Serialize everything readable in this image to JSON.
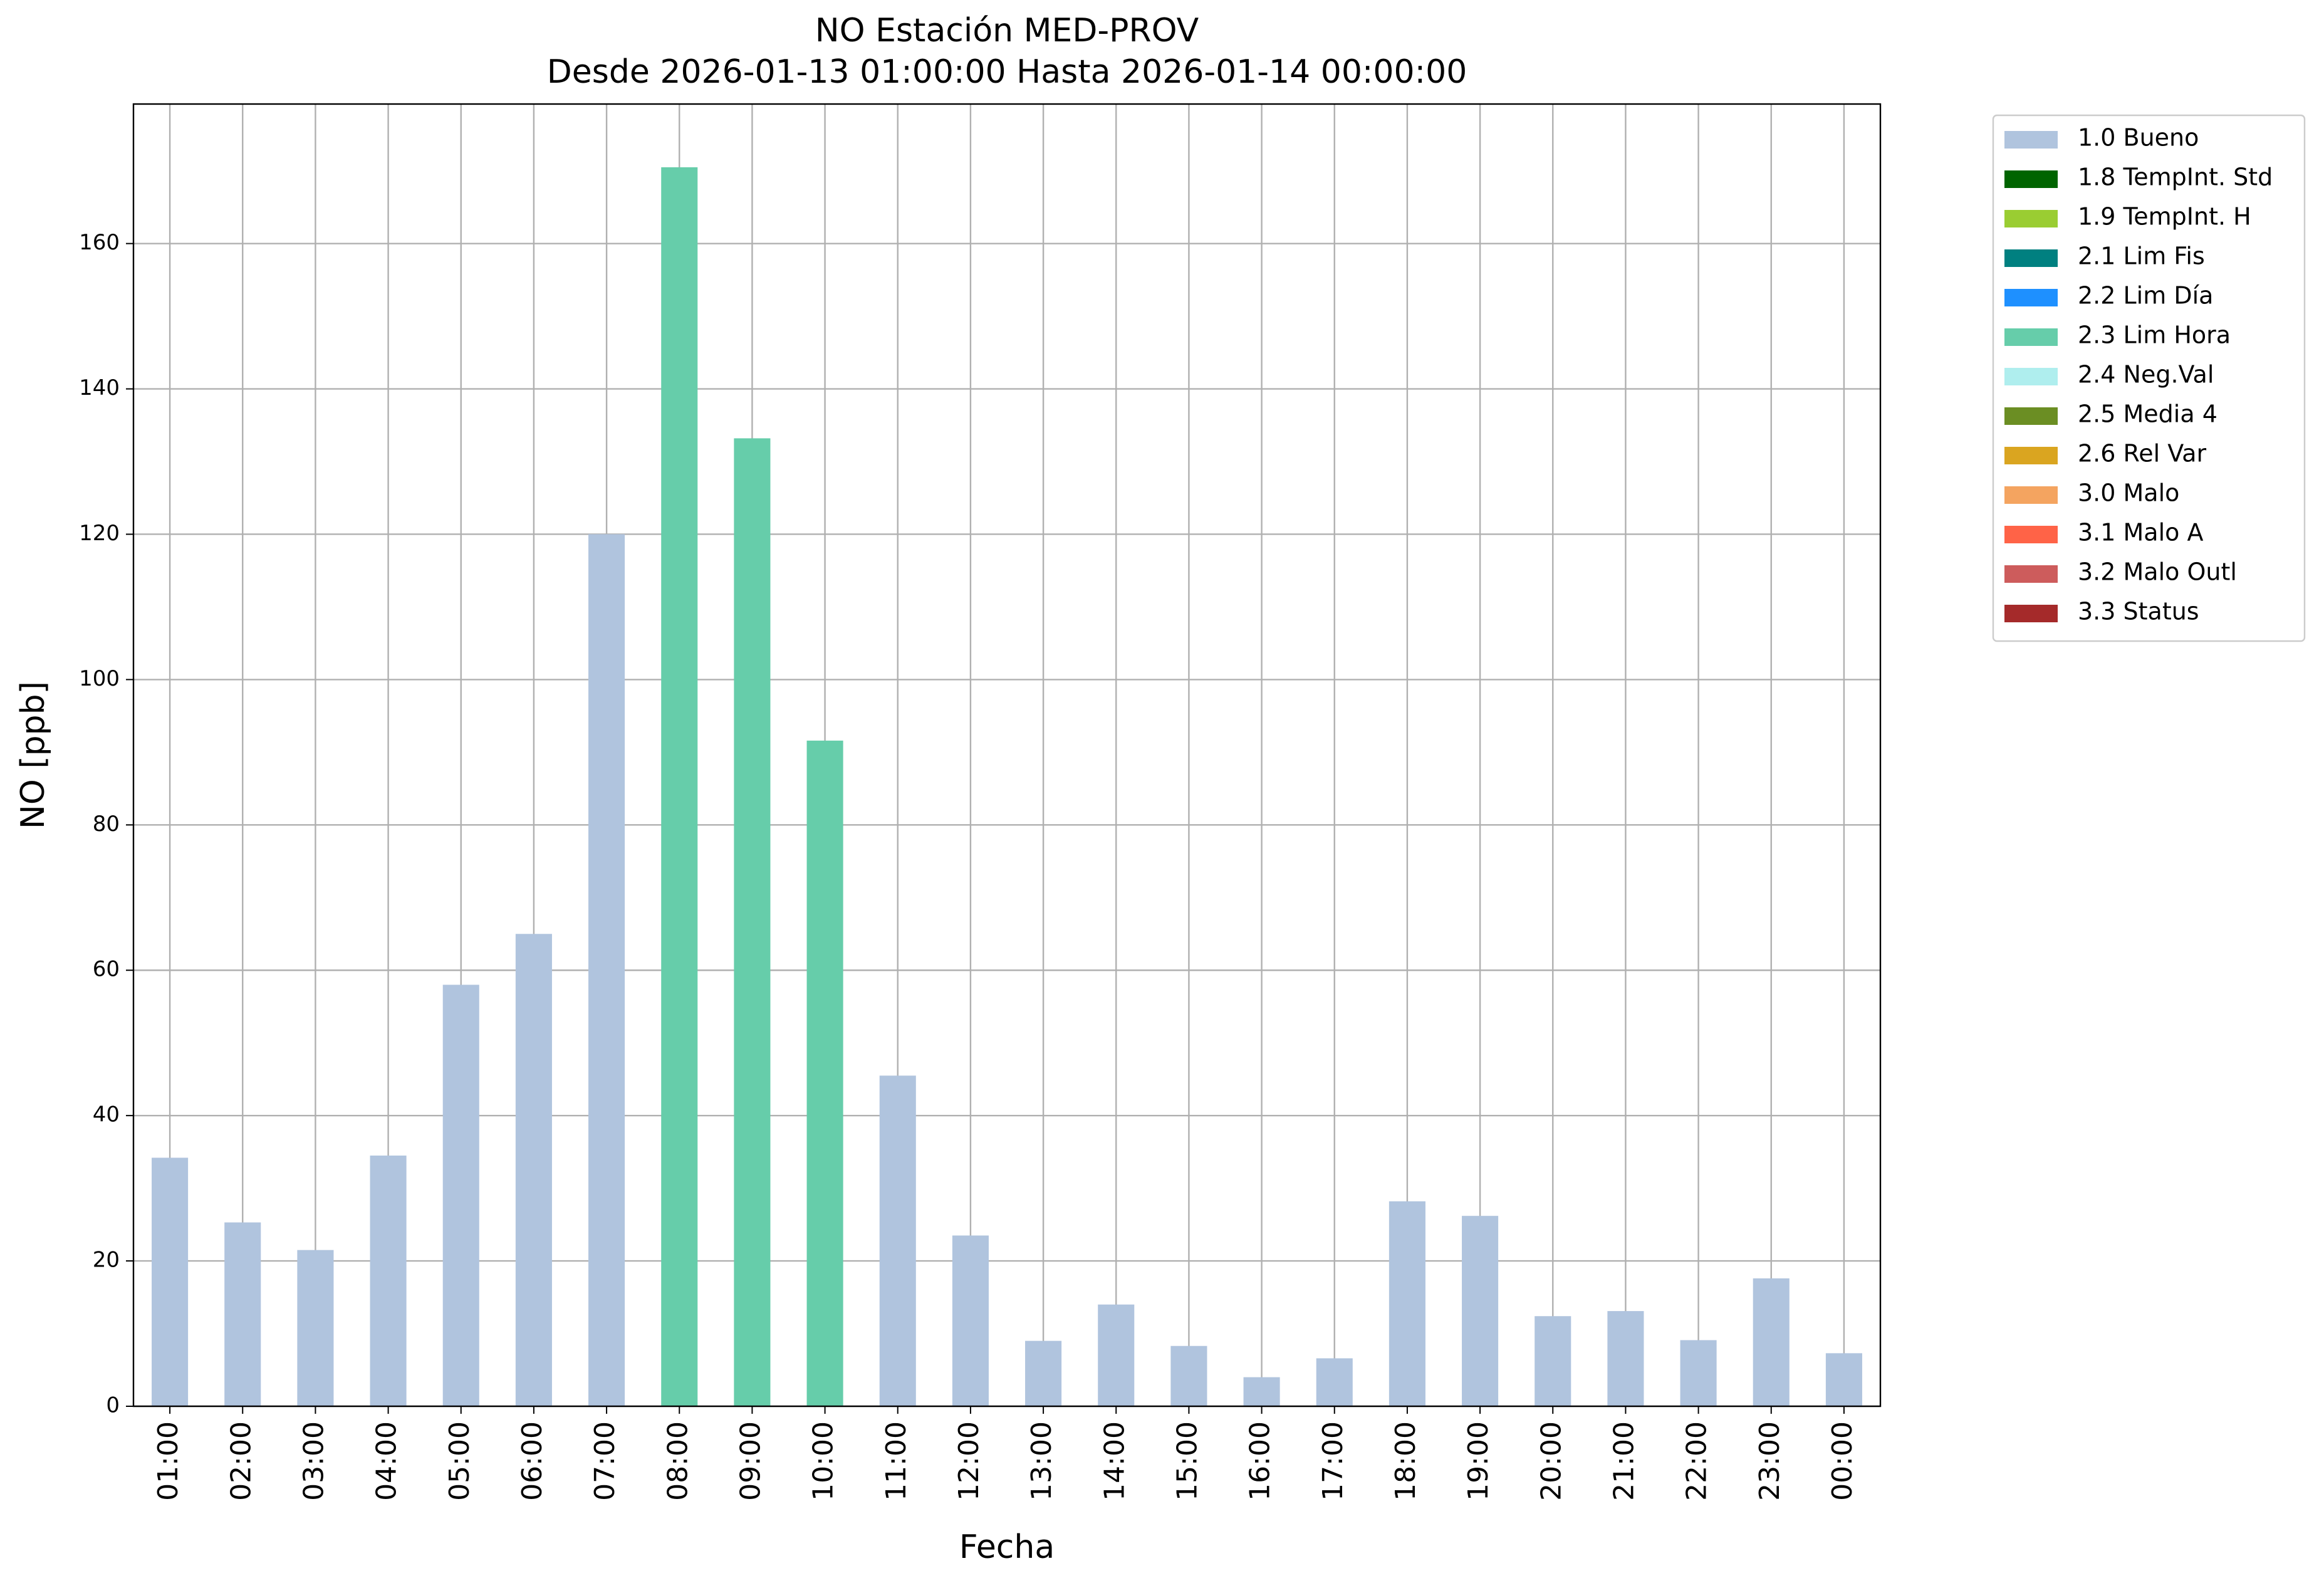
{
  "chart_data": {
    "type": "stacked_bar",
    "title": "NO Estación MED-PROV",
    "subtitle": "Desde 2026-01-13 01:00:00 Hasta 2026-01-14 00:00:00",
    "x_label": "Fecha",
    "y_label": "NO [ppb]",
    "categories": [
      "01:00",
      "02:00",
      "03:00",
      "04:00",
      "05:00",
      "06:00",
      "07:00",
      "08:00",
      "09:00",
      "10:00",
      "11:00",
      "12:00",
      "13:00",
      "14:00",
      "15:00",
      "16:00",
      "17:00",
      "18:00",
      "19:00",
      "20:00",
      "21:00",
      "22:00",
      "23:00",
      "00:00"
    ],
    "series": [
      {
        "name": "1.0 Bueno",
        "color": "#b0c4de",
        "values": [
          34.2,
          25.3,
          21.5,
          34.5,
          58,
          65,
          120,
          null,
          null,
          null,
          45.5,
          23.5,
          9,
          14,
          8.3,
          4,
          6.6,
          28.2,
          26.2,
          12.4,
          13.1,
          9.1,
          17.6,
          7.3
        ]
      },
      {
        "name": "1.8 TempInt. Std",
        "color": "#006400",
        "values": [
          null,
          null,
          null,
          null,
          null,
          null,
          null,
          null,
          null,
          null,
          null,
          null,
          null,
          null,
          null,
          null,
          null,
          null,
          null,
          null,
          null,
          null,
          null,
          null
        ]
      },
      {
        "name": "1.9 TempInt. H",
        "color": "#9acd32",
        "values": [
          null,
          null,
          null,
          null,
          null,
          null,
          null,
          null,
          null,
          null,
          null,
          null,
          null,
          null,
          null,
          null,
          null,
          null,
          null,
          null,
          null,
          null,
          null,
          null
        ]
      },
      {
        "name": "2.1 Lim Fis",
        "color": "#008080",
        "values": [
          null,
          null,
          null,
          null,
          null,
          null,
          null,
          null,
          null,
          null,
          null,
          null,
          null,
          null,
          null,
          null,
          null,
          null,
          null,
          null,
          null,
          null,
          null,
          null
        ]
      },
      {
        "name": "2.2 Lim Día",
        "color": "#1e90ff",
        "values": [
          null,
          null,
          null,
          null,
          null,
          null,
          null,
          null,
          null,
          null,
          null,
          null,
          null,
          null,
          null,
          null,
          null,
          null,
          null,
          null,
          null,
          null,
          null,
          null
        ]
      },
      {
        "name": "2.3 Lim Hora",
        "color": "#66cdaa",
        "values": [
          null,
          null,
          null,
          null,
          null,
          null,
          null,
          170.5,
          133.2,
          91.6,
          null,
          null,
          null,
          null,
          null,
          null,
          null,
          null,
          null,
          null,
          null,
          null,
          null,
          null
        ]
      },
      {
        "name": "2.4 Neg.Val",
        "color": "#afeeee",
        "values": [
          null,
          null,
          null,
          null,
          null,
          null,
          null,
          null,
          null,
          null,
          null,
          null,
          null,
          null,
          null,
          null,
          null,
          null,
          null,
          null,
          null,
          null,
          null,
          null
        ]
      },
      {
        "name": "2.5 Media 4",
        "color": "#6b8e23",
        "values": [
          null,
          null,
          null,
          null,
          null,
          null,
          null,
          null,
          null,
          null,
          null,
          null,
          null,
          null,
          null,
          null,
          null,
          null,
          null,
          null,
          null,
          null,
          null,
          null
        ]
      },
      {
        "name": "2.6 Rel Var",
        "color": "#daa520",
        "values": [
          null,
          null,
          null,
          null,
          null,
          null,
          null,
          null,
          null,
          null,
          null,
          null,
          null,
          null,
          null,
          null,
          null,
          null,
          null,
          null,
          null,
          null,
          null,
          null
        ]
      },
      {
        "name": "3.0 Malo",
        "color": "#f4a460",
        "values": [
          null,
          null,
          null,
          null,
          null,
          null,
          null,
          null,
          null,
          null,
          null,
          null,
          null,
          null,
          null,
          null,
          null,
          null,
          null,
          null,
          null,
          null,
          null,
          null
        ]
      },
      {
        "name": "3.1 Malo A",
        "color": "#ff6347",
        "values": [
          null,
          null,
          null,
          null,
          null,
          null,
          null,
          null,
          null,
          null,
          null,
          null,
          null,
          null,
          null,
          null,
          null,
          null,
          null,
          null,
          null,
          null,
          null,
          null
        ]
      },
      {
        "name": "3.2 Malo Outl",
        "color": "#cd5c5c",
        "values": [
          null,
          null,
          null,
          null,
          null,
          null,
          null,
          null,
          null,
          null,
          null,
          null,
          null,
          null,
          null,
          null,
          null,
          null,
          null,
          null,
          null,
          null,
          null,
          null
        ]
      },
      {
        "name": "3.3 Status",
        "color": "#a52a2a",
        "values": [
          null,
          null,
          null,
          null,
          null,
          null,
          null,
          null,
          null,
          null,
          null,
          null,
          null,
          null,
          null,
          null,
          null,
          null,
          null,
          null,
          null,
          null,
          null,
          null
        ]
      }
    ],
    "ylim": [
      0,
      179.2
    ],
    "yticks": [
      0,
      20,
      40,
      60,
      80,
      100,
      120,
      140,
      160
    ],
    "grid": true,
    "legend": "outside-right"
  }
}
